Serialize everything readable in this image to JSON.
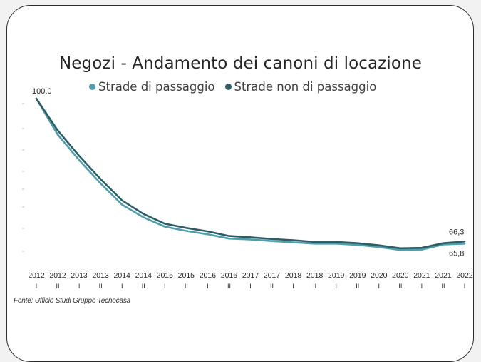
{
  "chart_data": {
    "type": "line",
    "title": "Negozi - Andamento dei canoni di locazione",
    "source": "Fonte: Ufficio Studi Gruppo Tecnocasa",
    "ylim": [
      64,
      100
    ],
    "grid": false,
    "legend_position": "top",
    "x_years": [
      "2012",
      "2012",
      "2013",
      "2013",
      "2014",
      "2014",
      "2015",
      "2015",
      "2016",
      "2016",
      "2017",
      "2017",
      "2018",
      "2018",
      "2019",
      "2019",
      "2020",
      "2020",
      "2021",
      "2021",
      "2022"
    ],
    "x_halves": [
      "I",
      "II",
      "I",
      "II",
      "I",
      "II",
      "I",
      "II",
      "I",
      "II",
      "I",
      "II",
      "I",
      "II",
      "I",
      "II",
      "I",
      "II",
      "I",
      "II",
      "I"
    ],
    "series": [
      {
        "name": "Strade di passaggio",
        "color": "#4d9fb0",
        "values": [
          100.0,
          91.5,
          85.5,
          80.0,
          75.0,
          72.0,
          69.8,
          68.8,
          68.0,
          67.0,
          66.8,
          66.4,
          66.1,
          65.8,
          65.8,
          65.5,
          65.0,
          64.3,
          64.4,
          65.6,
          65.8
        ]
      },
      {
        "name": "Strade non di passaggio",
        "color": "#2e5d63",
        "values": [
          100.0,
          92.5,
          86.5,
          81.0,
          76.0,
          72.8,
          70.5,
          69.5,
          68.7,
          67.6,
          67.3,
          66.9,
          66.6,
          66.2,
          66.2,
          65.9,
          65.4,
          64.7,
          64.8,
          65.9,
          66.3
        ]
      }
    ],
    "data_labels": {
      "start": "100,0",
      "end_series_2": "66,3",
      "end_series_1": "65,8"
    }
  }
}
